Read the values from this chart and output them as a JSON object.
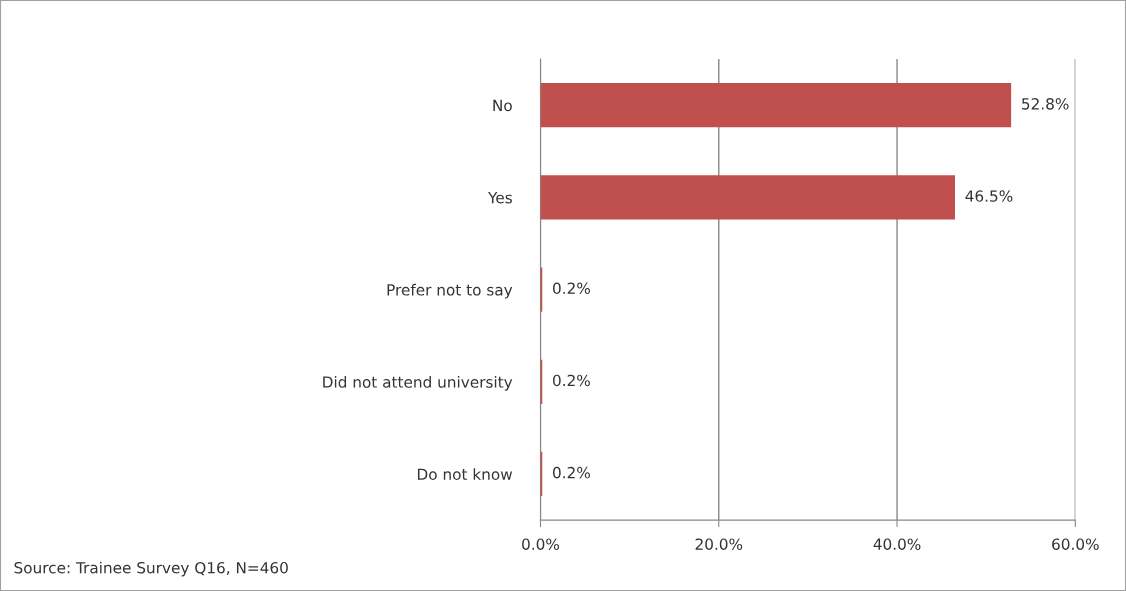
{
  "chart_data": {
    "type": "bar",
    "orientation": "horizontal",
    "categories": [
      "No",
      "Yes",
      "Prefer not to say",
      "Did not attend university",
      "Do not know"
    ],
    "values": [
      52.8,
      46.5,
      0.2,
      0.2,
      0.2
    ],
    "value_labels": [
      "52.8%",
      "46.5%",
      "0.2%",
      "0.2%",
      "0.2%"
    ],
    "color": "#c0504d",
    "xlim": [
      0,
      60
    ],
    "xticks": [
      {
        "value": 0,
        "label": "0.0%"
      },
      {
        "value": 20,
        "label": "20.0%"
      },
      {
        "value": 40,
        "label": "40.0%"
      },
      {
        "value": 60,
        "label": "60.0%"
      }
    ],
    "grid": "x",
    "annotations": [
      "Source: Trainee Survey Q16, N=460"
    ]
  }
}
